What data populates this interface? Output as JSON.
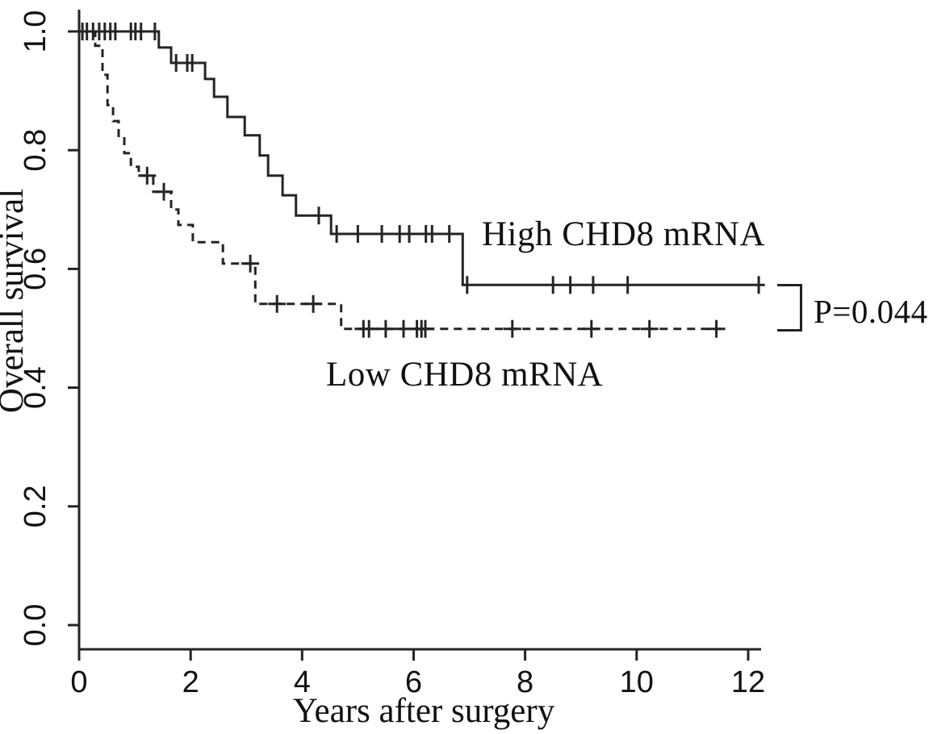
{
  "figure": {
    "background": "#ffffff",
    "curve_color": "#242424",
    "text_color": "#111111"
  },
  "chart_data": {
    "type": "line",
    "subtype": "kaplan-meier-step",
    "title": "",
    "xlabel": "Years after surgery",
    "ylabel": "Overall survival",
    "xlim": [
      0,
      12.3
    ],
    "ylim": [
      0.0,
      1.0
    ],
    "grid": false,
    "legend_position": "inline-annotations",
    "annotation": "P=0.044",
    "xticks": [
      "0",
      "2",
      "4",
      "6",
      "8",
      "10",
      "12"
    ],
    "xtick_values": [
      0,
      2,
      4,
      6,
      8,
      10,
      12
    ],
    "yticks": [
      "0.0",
      "0.2",
      "0.4",
      "0.6",
      "0.8",
      "1.0"
    ],
    "ytick_values": [
      0.0,
      0.2,
      0.4,
      0.6,
      0.8,
      1.0
    ],
    "series": [
      {
        "name": "High CHD8 mRNA",
        "line": "solid",
        "steps": [
          [
            0.0,
            1.0
          ],
          [
            1.43,
            0.973
          ],
          [
            1.65,
            0.947
          ],
          [
            2.26,
            0.92
          ],
          [
            2.42,
            0.89
          ],
          [
            2.66,
            0.856
          ],
          [
            2.97,
            0.825
          ],
          [
            3.24,
            0.791
          ],
          [
            3.39,
            0.757
          ],
          [
            3.65,
            0.724
          ],
          [
            3.89,
            0.69
          ],
          [
            4.52,
            0.659
          ],
          [
            6.88,
            0.573
          ]
        ],
        "end_time": 12.3,
        "censors": [
          [
            0.06,
            1.0
          ],
          [
            0.14,
            1.0
          ],
          [
            0.25,
            1.0
          ],
          [
            0.36,
            1.0
          ],
          [
            0.46,
            1.0
          ],
          [
            0.56,
            1.0
          ],
          [
            0.65,
            1.0
          ],
          [
            0.93,
            1.0
          ],
          [
            1.01,
            1.0
          ],
          [
            1.11,
            1.0
          ],
          [
            1.36,
            1.0
          ],
          [
            1.74,
            0.947
          ],
          [
            1.94,
            0.947
          ],
          [
            2.03,
            0.947
          ],
          [
            4.3,
            0.69
          ],
          [
            4.62,
            0.659
          ],
          [
            5.0,
            0.659
          ],
          [
            5.43,
            0.659
          ],
          [
            5.75,
            0.659
          ],
          [
            5.92,
            0.659
          ],
          [
            6.22,
            0.659
          ],
          [
            6.33,
            0.659
          ],
          [
            6.64,
            0.659
          ],
          [
            6.96,
            0.573
          ],
          [
            8.5,
            0.573
          ],
          [
            8.81,
            0.573
          ],
          [
            9.22,
            0.573
          ],
          [
            9.84,
            0.573
          ],
          [
            12.19,
            0.573
          ]
        ]
      },
      {
        "name": "Low CHD8 mRNA",
        "line": "dashed",
        "steps": [
          [
            0.0,
            1.0
          ],
          [
            0.29,
            0.976
          ],
          [
            0.42,
            0.927
          ],
          [
            0.51,
            0.876
          ],
          [
            0.61,
            0.849
          ],
          [
            0.71,
            0.822
          ],
          [
            0.81,
            0.795
          ],
          [
            0.93,
            0.772
          ],
          [
            1.07,
            0.757
          ],
          [
            1.33,
            0.73
          ],
          [
            1.65,
            0.7
          ],
          [
            1.78,
            0.674
          ],
          [
            2.04,
            0.645
          ],
          [
            2.58,
            0.609
          ],
          [
            3.16,
            0.541
          ],
          [
            4.7,
            0.499
          ]
        ],
        "end_time": 11.51,
        "censors": [
          [
            1.22,
            0.757
          ],
          [
            1.52,
            0.73
          ],
          [
            3.07,
            0.609
          ],
          [
            3.55,
            0.541
          ],
          [
            4.2,
            0.541
          ],
          [
            5.1,
            0.499
          ],
          [
            5.2,
            0.499
          ],
          [
            5.5,
            0.499
          ],
          [
            5.82,
            0.499
          ],
          [
            6.06,
            0.499
          ],
          [
            6.14,
            0.499
          ],
          [
            6.21,
            0.499
          ],
          [
            7.77,
            0.499
          ],
          [
            9.19,
            0.499
          ],
          [
            10.23,
            0.499
          ],
          [
            11.43,
            0.499
          ]
        ]
      }
    ]
  }
}
